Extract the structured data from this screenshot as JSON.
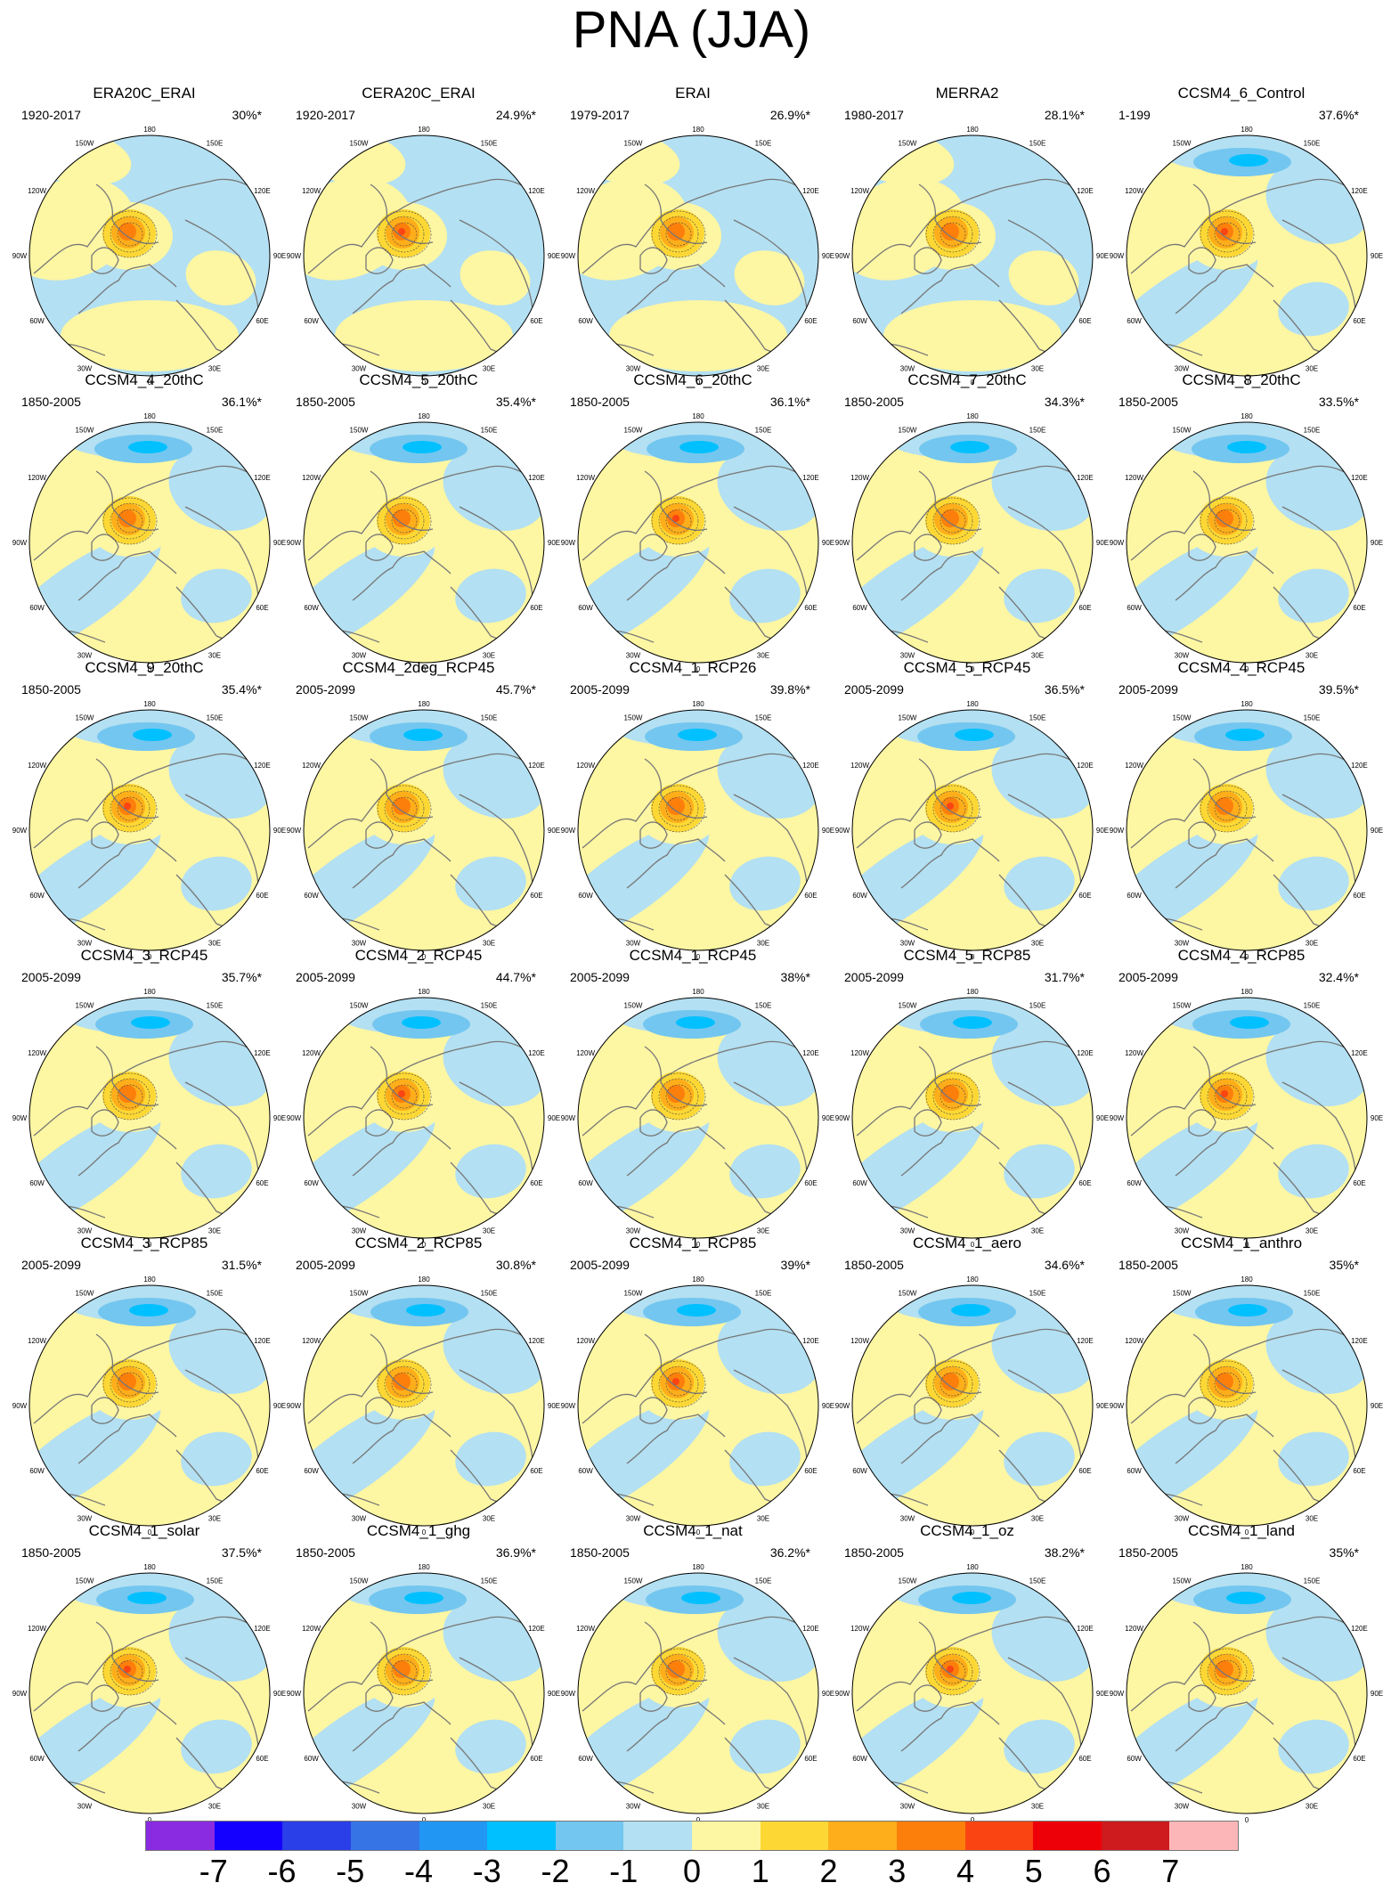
{
  "title": "PNA (JJA)",
  "panels": [
    {
      "name": "ERA20C_ERAI",
      "period": "1920-2017",
      "pct": "30%*"
    },
    {
      "name": "CERA20C_ERAI",
      "period": "1920-2017",
      "pct": "24.9%*"
    },
    {
      "name": "ERAI",
      "period": "1979-2017",
      "pct": "26.9%*"
    },
    {
      "name": "MERRA2",
      "period": "1980-2017",
      "pct": "28.1%*"
    },
    {
      "name": "CCSM4_6_Control",
      "period": "1-199",
      "pct": "37.6%*"
    },
    {
      "name": "CCSM4_4_20thC",
      "period": "1850-2005",
      "pct": "36.1%*"
    },
    {
      "name": "CCSM4_5_20thC",
      "period": "1850-2005",
      "pct": "35.4%*"
    },
    {
      "name": "CCSM4_6_20thC",
      "period": "1850-2005",
      "pct": "36.1%*"
    },
    {
      "name": "CCSM4_7_20thC",
      "period": "1850-2005",
      "pct": "34.3%*"
    },
    {
      "name": "CCSM4_8_20thC",
      "period": "1850-2005",
      "pct": "33.5%*"
    },
    {
      "name": "CCSM4_9_20thC",
      "period": "1850-2005",
      "pct": "35.4%*"
    },
    {
      "name": "CCSM4_2deg_RCP45",
      "period": "2005-2099",
      "pct": "45.7%*"
    },
    {
      "name": "CCSM4_1_RCP26",
      "period": "2005-2099",
      "pct": "39.8%*"
    },
    {
      "name": "CCSM4_5_RCP45",
      "period": "2005-2099",
      "pct": "36.5%*"
    },
    {
      "name": "CCSM4_4_RCP45",
      "period": "2005-2099",
      "pct": "39.5%*"
    },
    {
      "name": "CCSM4_3_RCP45",
      "period": "2005-2099",
      "pct": "35.7%*"
    },
    {
      "name": "CCSM4_2_RCP45",
      "period": "2005-2099",
      "pct": "44.7%*"
    },
    {
      "name": "CCSM4_1_RCP45",
      "period": "2005-2099",
      "pct": "38%*"
    },
    {
      "name": "CCSM4_5_RCP85",
      "period": "2005-2099",
      "pct": "31.7%*"
    },
    {
      "name": "CCSM4_4_RCP85",
      "period": "2005-2099",
      "pct": "32.4%*"
    },
    {
      "name": "CCSM4_3_RCP85",
      "period": "2005-2099",
      "pct": "31.5%*"
    },
    {
      "name": "CCSM4_2_RCP85",
      "period": "2005-2099",
      "pct": "30.8%*"
    },
    {
      "name": "CCSM4_1_RCP85",
      "period": "2005-2099",
      "pct": "39%*"
    },
    {
      "name": "CCSM4_1_aero",
      "period": "1850-2005",
      "pct": "34.6%*"
    },
    {
      "name": "CCSM4_1_anthro",
      "period": "1850-2005",
      "pct": "35%*"
    },
    {
      "name": "CCSM4_1_solar",
      "period": "1850-2005",
      "pct": "37.5%*"
    },
    {
      "name": "CCSM4_1_ghg",
      "period": "1850-2005",
      "pct": "36.9%*"
    },
    {
      "name": "CCSM4_1_nat",
      "period": "1850-2005",
      "pct": "36.2%*"
    },
    {
      "name": "CCSM4_1_oz",
      "period": "1850-2005",
      "pct": "38.2%*"
    },
    {
      "name": "CCSM4_1_land",
      "period": "1850-2005",
      "pct": "35%*"
    }
  ],
  "map_labels": [
    "180",
    "150W",
    "150E",
    "120W",
    "120E",
    "90W",
    "90E",
    "60W",
    "60E",
    "30W",
    "30E",
    "0"
  ],
  "colorbar": {
    "colors": [
      "#8a2be2",
      "#1400ff",
      "#2b3fe8",
      "#3674e6",
      "#2196f3",
      "#00c0ff",
      "#73c6ef",
      "#b3e0f2",
      "#fdf6a3",
      "#fdd835",
      "#fdae1a",
      "#fc7f0c",
      "#fa4412",
      "#ee0008",
      "#cd1b1e",
      "#fcb6b8"
    ],
    "labels": [
      "-7",
      "-6",
      "-5",
      "-4",
      "-3",
      "-2",
      "-1",
      "0",
      "1",
      "2",
      "3",
      "4",
      "5",
      "6",
      "7"
    ]
  },
  "palette": {
    "background_positive": "#fdf6a3",
    "background_negative": "#b3e0f2",
    "coast": "#777777"
  }
}
